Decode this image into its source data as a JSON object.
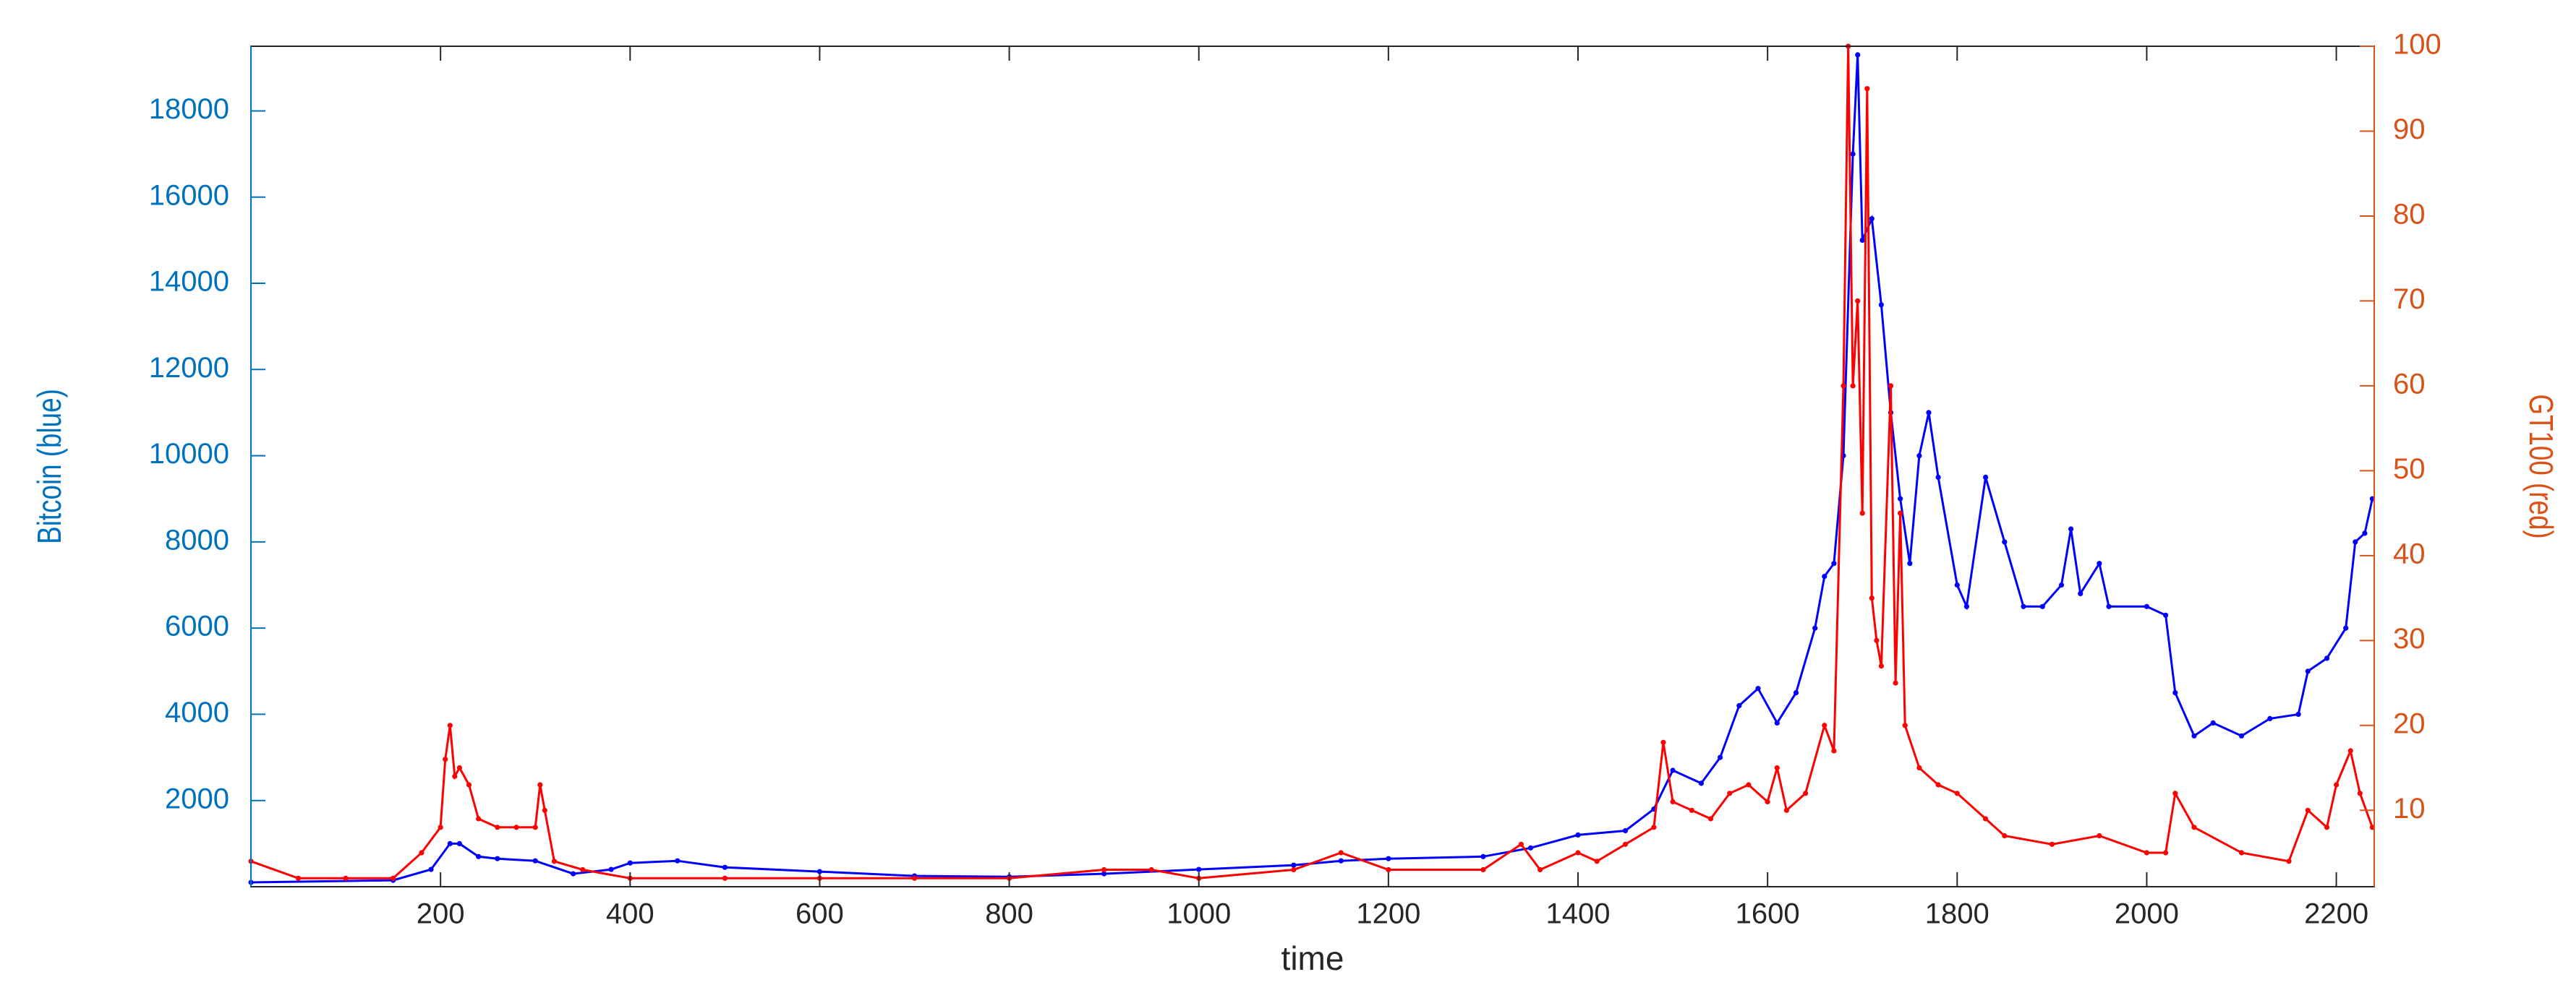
{
  "chart_data": {
    "type": "line",
    "xlabel": "time",
    "ylabel": "Bitcoin (blue)",
    "y2label": "GT100 (red)",
    "xlim": [
      0,
      2240
    ],
    "xticks": [
      200,
      400,
      600,
      800,
      1000,
      1200,
      1400,
      1600,
      1800,
      2000,
      2200
    ],
    "ylim": [
      0,
      19500
    ],
    "yticks": [
      2000,
      4000,
      6000,
      8000,
      10000,
      12000,
      14000,
      16000,
      18000
    ],
    "y2lim": [
      1,
      100
    ],
    "y2ticks": [
      10,
      20,
      30,
      40,
      50,
      60,
      70,
      80,
      90,
      100
    ],
    "ycolor": "#0072bd",
    "y2color": "#d95319",
    "series": [
      {
        "name": "Bitcoin",
        "color": "#0000ff",
        "x": [
          0,
          150,
          190,
          210,
          220,
          240,
          260,
          300,
          340,
          380,
          400,
          450,
          500,
          600,
          700,
          800,
          900,
          1000,
          1100,
          1150,
          1200,
          1300,
          1350,
          1400,
          1450,
          1480,
          1500,
          1530,
          1550,
          1570,
          1590,
          1610,
          1630,
          1650,
          1660,
          1670,
          1680,
          1690,
          1695,
          1700,
          1710,
          1720,
          1730,
          1740,
          1750,
          1760,
          1770,
          1780,
          1800,
          1810,
          1830,
          1850,
          1870,
          1890,
          1910,
          1920,
          1930,
          1950,
          1960,
          2000,
          2020,
          2030,
          2050,
          2070,
          2100,
          2130,
          2160,
          2170,
          2190,
          2210,
          2220,
          2230,
          2238
        ],
        "values": [
          100,
          150,
          400,
          1000,
          1000,
          700,
          650,
          600,
          300,
          400,
          550,
          600,
          450,
          350,
          250,
          230,
          300,
          400,
          500,
          600,
          650,
          700,
          900,
          1200,
          1300,
          1800,
          2700,
          2400,
          3000,
          4200,
          4600,
          3800,
          4500,
          6000,
          7200,
          7500,
          10000,
          17000,
          19300,
          15000,
          15500,
          13500,
          11000,
          9000,
          7500,
          10000,
          11000,
          9500,
          7000,
          6500,
          9500,
          8000,
          6500,
          6500,
          7000,
          8300,
          6800,
          7500,
          6500,
          6500,
          6300,
          4500,
          3500,
          3800,
          3500,
          3900,
          4000,
          5000,
          5300,
          6000,
          8000,
          8200,
          9000
        ]
      },
      {
        "name": "GT100",
        "color": "#ff0000",
        "axis": "y2",
        "x": [
          0,
          50,
          100,
          150,
          180,
          200,
          205,
          210,
          215,
          220,
          230,
          240,
          260,
          280,
          300,
          305,
          310,
          320,
          350,
          400,
          500,
          600,
          700,
          800,
          900,
          950,
          1000,
          1100,
          1150,
          1200,
          1300,
          1340,
          1360,
          1400,
          1420,
          1450,
          1480,
          1490,
          1500,
          1520,
          1540,
          1560,
          1580,
          1600,
          1610,
          1620,
          1640,
          1660,
          1670,
          1680,
          1685,
          1690,
          1695,
          1700,
          1705,
          1710,
          1715,
          1720,
          1730,
          1735,
          1740,
          1745,
          1760,
          1780,
          1800,
          1830,
          1850,
          1900,
          1950,
          2000,
          2020,
          2030,
          2050,
          2100,
          2150,
          2170,
          2190,
          2200,
          2215,
          2225,
          2238
        ],
        "values": [
          4,
          2,
          2,
          2,
          5,
          8,
          16,
          20,
          14,
          15,
          13,
          9,
          8,
          8,
          8,
          13,
          10,
          4,
          3,
          2,
          2,
          2,
          2,
          2,
          3,
          3,
          2,
          3,
          5,
          3,
          3,
          6,
          3,
          5,
          4,
          6,
          8,
          18,
          11,
          10,
          9,
          12,
          13,
          11,
          15,
          10,
          12,
          20,
          17,
          60,
          100,
          60,
          70,
          45,
          95,
          35,
          30,
          27,
          60,
          25,
          45,
          20,
          15,
          13,
          12,
          9,
          7,
          6,
          7,
          5,
          5,
          12,
          8,
          5,
          4,
          10,
          8,
          13,
          17,
          12,
          8
        ]
      }
    ]
  }
}
